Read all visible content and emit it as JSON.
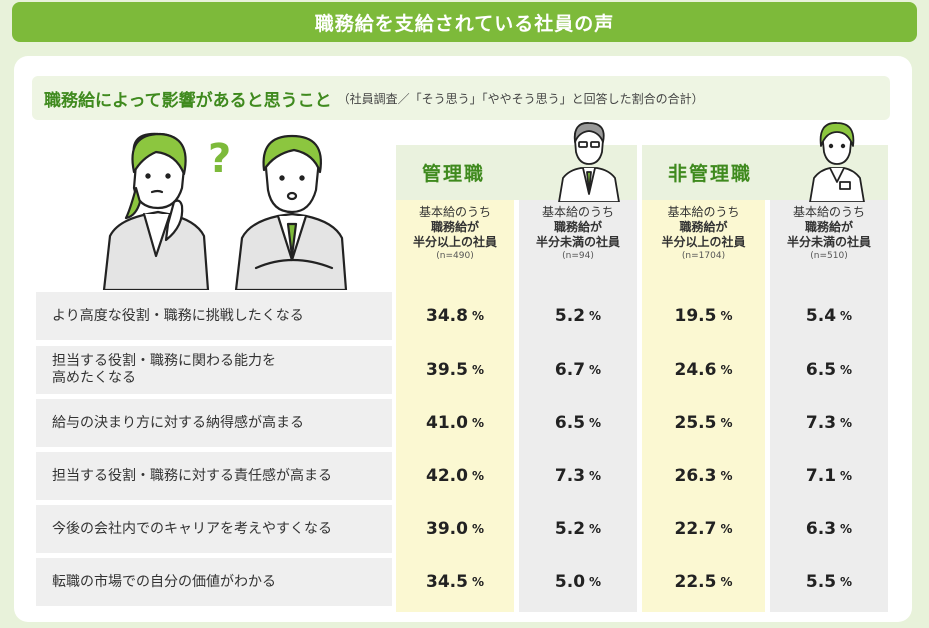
{
  "banner": {
    "title": "職務給を支給されている社員の声"
  },
  "subtitle": {
    "main": "職務給によって影響があると思うこと",
    "note": "（社員調査／「そう思う」「ややそう思う」と回答した割合の合計）"
  },
  "chart_data": {
    "type": "table",
    "groups": [
      "管理職",
      "非管理職"
    ],
    "columns": [
      {
        "group": "管理職",
        "l1": "基本給のうち",
        "l2": "職務給が",
        "l3": "半分以上の社員",
        "n": "(n=490)"
      },
      {
        "group": "管理職",
        "l1": "基本給のうち",
        "l2": "職務給が",
        "l3": "半分未満の社員",
        "n": "(n=94)"
      },
      {
        "group": "非管理職",
        "l1": "基本給のうち",
        "l2": "職務給が",
        "l3": "半分以上の社員",
        "n": "(n=1704)"
      },
      {
        "group": "非管理職",
        "l1": "基本給のうち",
        "l2": "職務給が",
        "l3": "半分未満の社員",
        "n": "(n=510)"
      }
    ],
    "unit": "%",
    "rows": [
      {
        "label": "より高度な役割・職務に挑戦したくなる",
        "values": [
          34.8,
          5.2,
          19.5,
          5.4
        ]
      },
      {
        "label": "担当する役割・職務に関わる能力を\n高めたくなる",
        "values": [
          39.5,
          6.7,
          24.6,
          6.5
        ]
      },
      {
        "label": "給与の決まり方に対する納得感が高まる",
        "values": [
          41.0,
          6.5,
          25.5,
          7.3
        ]
      },
      {
        "label": "担当する役割・職務に対する責任感が高まる",
        "values": [
          42.0,
          7.3,
          26.3,
          7.1
        ]
      },
      {
        "label": "今後の会社内でのキャリアを考えやすくなる",
        "values": [
          39.0,
          5.2,
          22.7,
          6.3
        ]
      },
      {
        "label": "転職の市場での自分の価値がわかる",
        "values": [
          34.5,
          5.0,
          22.5,
          5.5
        ]
      }
    ]
  },
  "colors": {
    "accent_green": "#7dba3a",
    "dark_green": "#3f8a1e",
    "cream": "#fbf8d2",
    "gray": "#ededed"
  }
}
